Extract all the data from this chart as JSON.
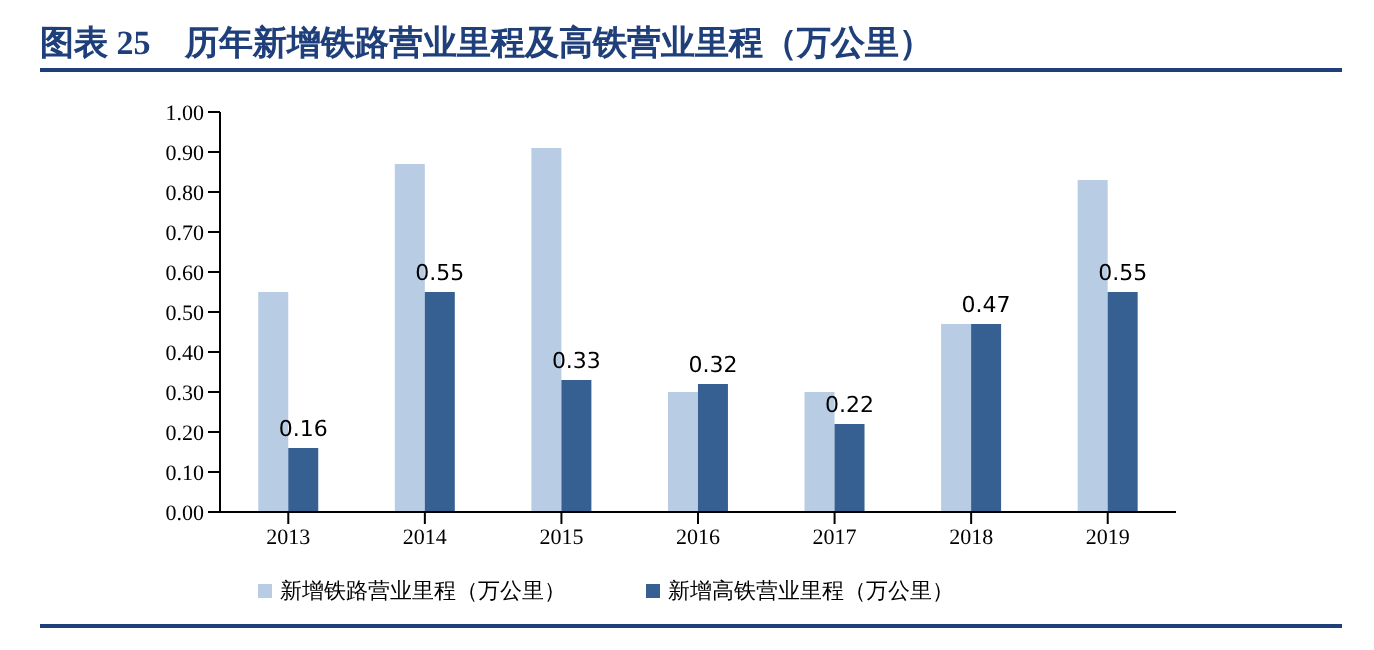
{
  "chart_data": {
    "type": "bar",
    "title": "图表 25　历年新增铁路营业里程及高铁营业里程（万公里）",
    "categories": [
      "2013",
      "2014",
      "2015",
      "2016",
      "2017",
      "2018",
      "2019"
    ],
    "series": [
      {
        "name": "新增铁路营业里程（万公里）",
        "color": "#b8cce4",
        "values": [
          0.55,
          0.87,
          0.91,
          0.3,
          0.3,
          0.47,
          0.83
        ]
      },
      {
        "name": "新增高铁营业里程（万公里）",
        "color": "#376092",
        "values": [
          0.16,
          0.55,
          0.33,
          0.32,
          0.22,
          0.47,
          0.55
        ],
        "value_labels": [
          "0.16",
          "0.55",
          "0.33",
          "0.32",
          "0.22",
          "0.47",
          "0.55"
        ]
      }
    ],
    "ylim": [
      0,
      1
    ],
    "yticks": [
      {
        "value": 0,
        "label": "0.00"
      },
      {
        "value": 0.1,
        "label": "0.10"
      },
      {
        "value": 0.2,
        "label": "0.20"
      },
      {
        "value": 0.3,
        "label": "0.30"
      },
      {
        "value": 0.4,
        "label": "0.40"
      },
      {
        "value": 0.5,
        "label": "0.50"
      },
      {
        "value": 0.6,
        "label": "0.60"
      },
      {
        "value": 0.7,
        "label": "0.70"
      },
      {
        "value": 0.8,
        "label": "0.80"
      },
      {
        "value": 0.9,
        "label": "0.90"
      },
      {
        "value": 1,
        "label": "1.00"
      }
    ],
    "grid": false,
    "legend": "bottom"
  }
}
